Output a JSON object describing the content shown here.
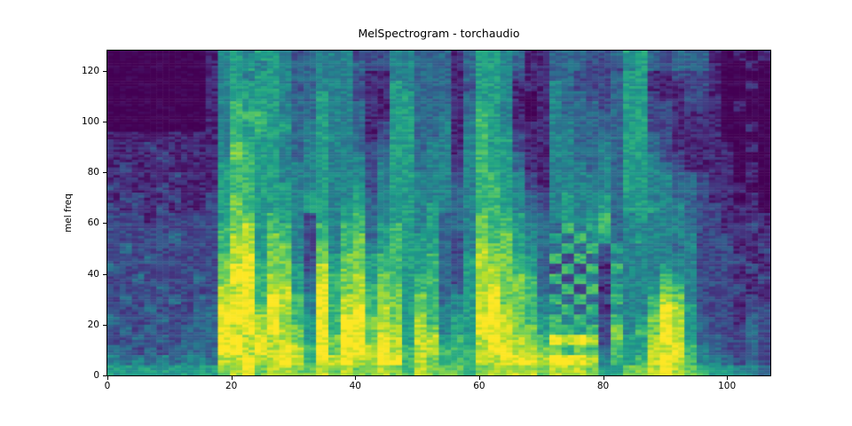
{
  "chart_data": {
    "type": "heatmap",
    "title": "MelSpectrogram - torchaudio",
    "xlabel": "",
    "ylabel": "mel freq",
    "x_range": [
      0,
      107
    ],
    "y_range": [
      0,
      128
    ],
    "x_ticks": [
      0,
      20,
      40,
      60,
      80,
      100
    ],
    "y_ticks": [
      0,
      20,
      40,
      60,
      80,
      100,
      120
    ],
    "legend": "none",
    "grid_lines": "off",
    "colormap": "viridis",
    "colormap_anchors": [
      "#440154",
      "#482878",
      "#3e4989",
      "#31688e",
      "#26828e",
      "#1f9e89",
      "#35b779",
      "#6ece58",
      "#b5de2b",
      "#fde725"
    ],
    "grid": {
      "cols": 54,
      "rows": 32,
      "col_span_frames": 2,
      "row_span_mel_bins": 4,
      "scale": "intensity 0 (low energy, dark purple) to 9 (high energy, yellow)",
      "row_order": "top row = mel bins 124-128, bottom row = mel bins 0-4",
      "intensity_rows_top_to_bottom": [
        "000000001454554234442224433313554311333223553233310101",
        "000000001455454334443224433313554311333222453233310010",
        "000000001454554334442114433313554211332223551122210000",
        "000000001455554234442115433312554111432223551112210010",
        "000000001455554335442115533313554101433223552112210000",
        "000000001465554335443115533313654101433323552212210100",
        "000000001466654335443115533413654101433333552211110000",
        "000000001465655345443125533414654111443333552211110010",
        "111111111465554345443125533414655211443333553211110000",
        "111211111476554345443235534414655211443343553211111010",
        "111121111476554345444235534414655311443343554221111000",
        "121111111566554445444245534424655311444343554321111010",
        "111112111566554445444245544424665421444443554433211010",
        "211121111566555445445245544434665421444443554433211100",
        "122112112576555455445345544434665432454453554433211010",
        "212121112576555455455345545434665432454453555443221110",
        "222122222577565425456345545334766533454563454443221111",
        "222222222678566426466356545334766543364563444443221121",
        "222223222688576426467356555324767543536453454444222111",
        "232222222688577427467456555324877543363625444434222112",
        "222322222789577427577566556325877653626324444444222211",
        "322222222799677528577566556325887653262616444544222121",
        "223222232799687538678576566325887763626424444654222112",
        "222232222889688539678677566335897763362615445764222211",
        "232223232899698649688677576345897764636326446874222121",
        "222322233999798649689687576445898764463614446985222122",
        "322232233999897659699787586455998765646426457985322132",
        "232322333989898759699788587455998775665627467985322232",
        "223232333998988759799798588565898876989827558985332232",
        "332323333998989869799898688666899887767636558896432232",
        "434343443889889869898899687666889998999846568986443232",
        "555555555789788778787787687776788887888755778987655443"
      ]
    }
  }
}
